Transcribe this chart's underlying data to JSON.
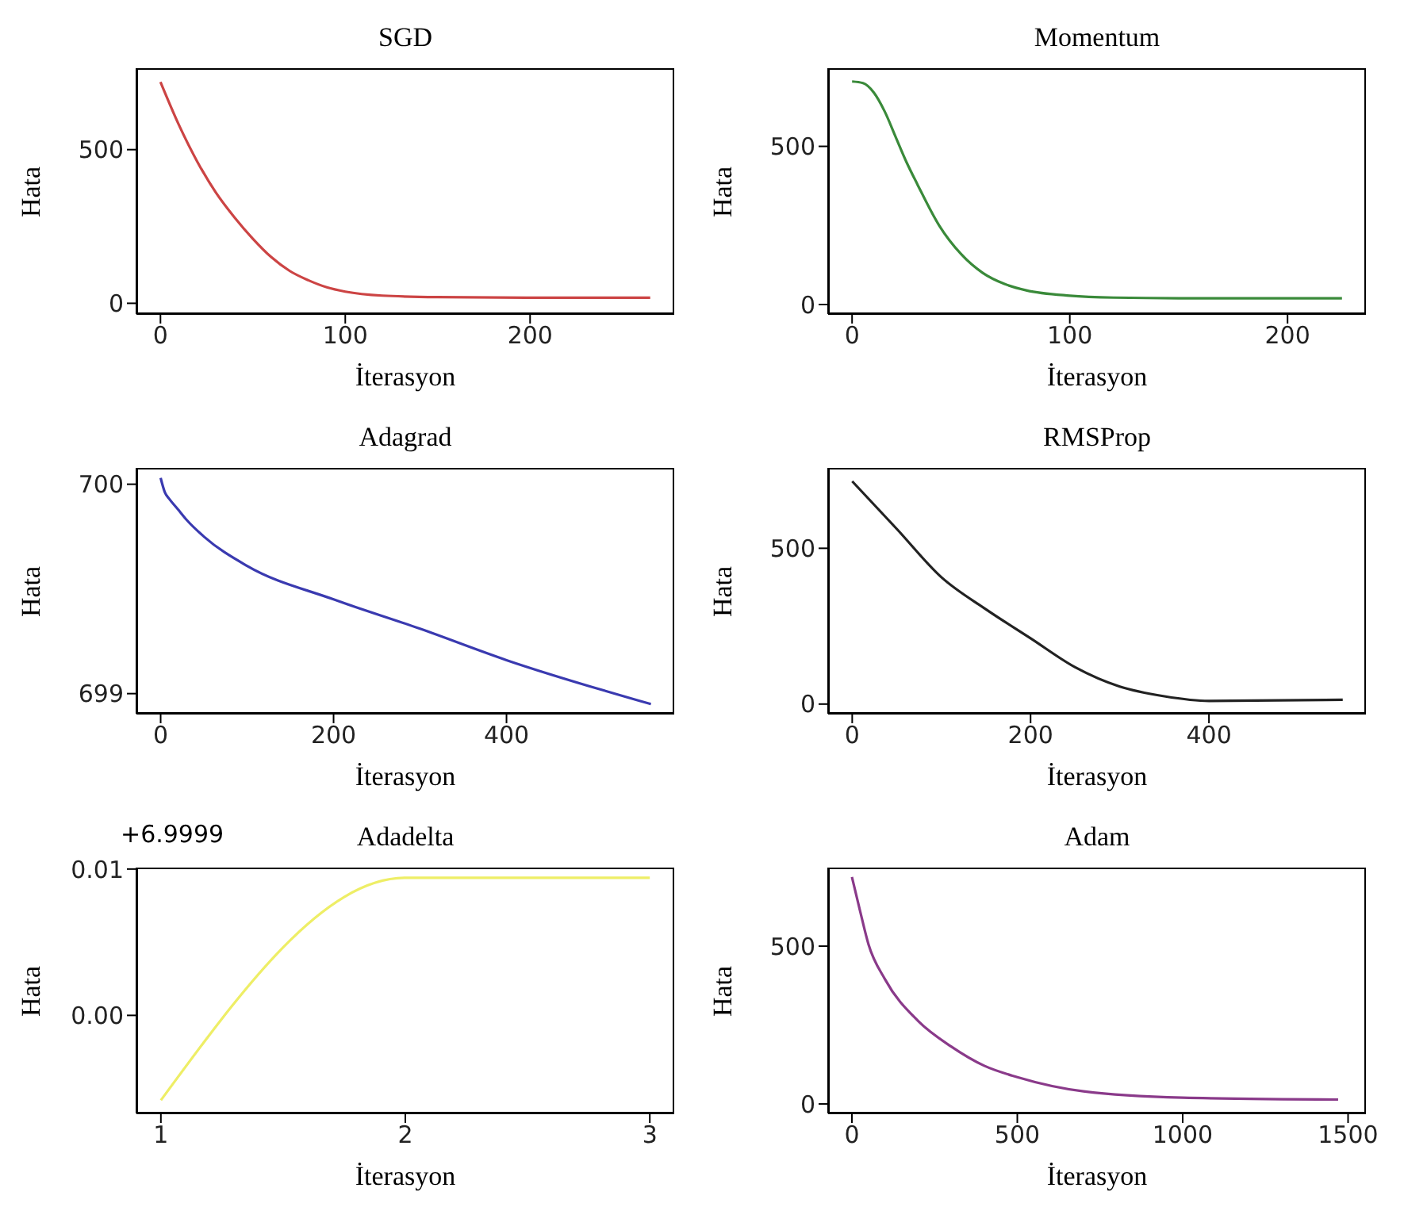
{
  "chart_data": [
    {
      "type": "line",
      "title": "SGD",
      "xlabel": "İterasyon",
      "ylabel": "Hata",
      "xlim": [
        -13,
        278
      ],
      "ylim": [
        -35,
        765
      ],
      "xticks": [
        0,
        100,
        200
      ],
      "yticks": [
        0,
        500
      ],
      "x": [
        0,
        10,
        20,
        30,
        40,
        50,
        60,
        70,
        80,
        90,
        100,
        120,
        150,
        200,
        265
      ],
      "series": [
        {
          "color": "#cc4444",
          "values": [
            720,
            580,
            460,
            360,
            280,
            210,
            150,
            105,
            75,
            52,
            38,
            25,
            20,
            18,
            18
          ]
        }
      ]
    },
    {
      "type": "line",
      "title": "Momentum",
      "xlabel": "İterasyon",
      "ylabel": "Hata",
      "xlim": [
        -11,
        236
      ],
      "ylim": [
        -30,
        747
      ],
      "xticks": [
        0,
        100,
        200
      ],
      "yticks": [
        0,
        500
      ],
      "x": [
        0,
        5,
        10,
        15,
        20,
        25,
        30,
        40,
        50,
        60,
        70,
        80,
        100,
        120,
        150,
        225
      ],
      "series": [
        {
          "color": "#3a8a3a",
          "values": [
            705,
            700,
            670,
            610,
            530,
            450,
            380,
            250,
            160,
            100,
            65,
            45,
            28,
            22,
            20,
            20
          ]
        }
      ]
    },
    {
      "type": "line",
      "title": "Adagrad",
      "xlabel": "İterasyon",
      "ylabel": "Hata",
      "xlim": [
        -28,
        594
      ],
      "ylim": [
        698.904,
        700.078
      ],
      "xticks": [
        0,
        200,
        400
      ],
      "yticks": [
        699,
        700
      ],
      "x": [
        0,
        5,
        10,
        20,
        30,
        50,
        100,
        200,
        300,
        400,
        567
      ],
      "series": [
        {
          "color": "#3a3ab0",
          "values": [
            700.03,
            699.96,
            699.93,
            699.88,
            699.83,
            699.75,
            699.61,
            699.45,
            699.31,
            699.16,
            698.95
          ]
        }
      ]
    },
    {
      "type": "line",
      "title": "RMSProp",
      "xlabel": "İterasyon",
      "ylabel": "Hata",
      "xlim": [
        -27,
        576
      ],
      "ylim": [
        -31,
        758
      ],
      "xticks": [
        0,
        200,
        400
      ],
      "yticks": [
        0,
        500
      ],
      "x": [
        0,
        50,
        100,
        150,
        200,
        250,
        300,
        350,
        400,
        550
      ],
      "series": [
        {
          "color": "#222222",
          "values": [
            715,
            562,
            407,
            304,
            211,
            118,
            56,
            25,
            10,
            14
          ]
        }
      ]
    },
    {
      "type": "line",
      "title": "Adadelta",
      "xlabel": "İterasyon",
      "ylabel": "Hata",
      "annotations": [
        "+6.9999"
      ],
      "xlim": [
        0.9,
        3.1
      ],
      "ylim": [
        -0.0067,
        0.0101
      ],
      "xticks": [
        1,
        2,
        3
      ],
      "yticks": [
        {
          "value": 0,
          "label": "0.00"
        },
        {
          "value": 0.01,
          "label": "0.01"
        }
      ],
      "x": [
        1,
        2,
        3
      ],
      "series": [
        {
          "color": "#eeee66",
          "values": [
            -0.0058,
            0.0094,
            0.0094
          ]
        }
      ]
    },
    {
      "type": "line",
      "title": "Adam",
      "xlabel": "İterasyon",
      "ylabel": "Hata",
      "xlim": [
        -72,
        1554
      ],
      "ylim": [
        -30,
        749
      ],
      "xticks": [
        0,
        500,
        1000,
        1500
      ],
      "yticks": [
        0,
        500
      ],
      "x": [
        0,
        25,
        50,
        100,
        200,
        300,
        400,
        500,
        700,
        1000,
        1470
      ],
      "series": [
        {
          "color": "#8a3a8a",
          "values": [
            719,
            610,
            506,
            395,
            263,
            182,
            121,
            85,
            40,
            20,
            14
          ]
        }
      ]
    }
  ]
}
